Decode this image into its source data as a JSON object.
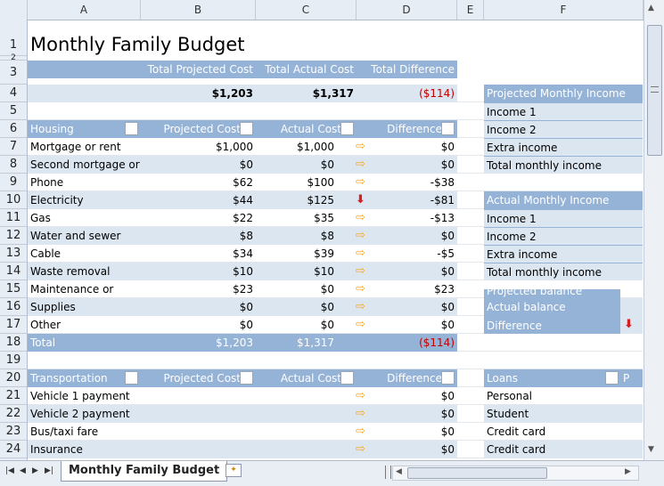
{
  "columns": [
    "A",
    "B",
    "C",
    "D",
    "E",
    "F"
  ],
  "rows": [
    "1",
    "2",
    "3",
    "4",
    "5",
    "6",
    "7",
    "8",
    "9",
    "10",
    "11",
    "12",
    "13",
    "14",
    "15",
    "16",
    "17",
    "18",
    "19",
    "20",
    "21",
    "22",
    "23",
    "24"
  ],
  "title": "Monthly Family Budget",
  "summary": {
    "headers": [
      "Total Projected Cost",
      "Total Actual Cost",
      "Total Difference"
    ],
    "values": [
      "$1,203",
      "$1,317",
      "($114)"
    ]
  },
  "housing": {
    "headers": [
      "Housing",
      "Projected Cost",
      "Actual Cost",
      "Difference"
    ],
    "rows": [
      {
        "label": "Mortgage or rent",
        "projected": "$1,000",
        "actual": "$1,000",
        "diff": "$0",
        "dir": "side"
      },
      {
        "label": "Second mortgage or",
        "projected": "$0",
        "actual": "$0",
        "diff": "$0",
        "dir": "side"
      },
      {
        "label": "Phone",
        "projected": "$62",
        "actual": "$100",
        "diff": "-$38",
        "dir": "side"
      },
      {
        "label": "Electricity",
        "projected": "$44",
        "actual": "$125",
        "diff": "-$81",
        "dir": "down"
      },
      {
        "label": "Gas",
        "projected": "$22",
        "actual": "$35",
        "diff": "-$13",
        "dir": "side"
      },
      {
        "label": "Water and sewer",
        "projected": "$8",
        "actual": "$8",
        "diff": "$0",
        "dir": "side"
      },
      {
        "label": "Cable",
        "projected": "$34",
        "actual": "$39",
        "diff": "-$5",
        "dir": "side"
      },
      {
        "label": "Waste removal",
        "projected": "$10",
        "actual": "$10",
        "diff": "$0",
        "dir": "side"
      },
      {
        "label": "Maintenance or",
        "projected": "$23",
        "actual": "$0",
        "diff": "$23",
        "dir": "side"
      },
      {
        "label": "Supplies",
        "projected": "$0",
        "actual": "$0",
        "diff": "$0",
        "dir": "side"
      },
      {
        "label": "Other",
        "projected": "$0",
        "actual": "$0",
        "diff": "$0",
        "dir": "side"
      }
    ],
    "total": {
      "label": "Total",
      "projected": "$1,203",
      "actual": "$1,317",
      "diff": "($114)"
    }
  },
  "transportation": {
    "headers": [
      "Transportation",
      "Projected Cost",
      "Actual Cost",
      "Difference"
    ],
    "rows": [
      {
        "label": "Vehicle 1 payment",
        "projected": "",
        "actual": "",
        "diff": "$0",
        "dir": "side"
      },
      {
        "label": "Vehicle 2 payment",
        "projected": "",
        "actual": "",
        "diff": "$0",
        "dir": "side"
      },
      {
        "label": "Bus/taxi fare",
        "projected": "",
        "actual": "",
        "diff": "$0",
        "dir": "side"
      },
      {
        "label": "Insurance",
        "projected": "",
        "actual": "",
        "diff": "$0",
        "dir": "side"
      }
    ]
  },
  "projected_income": {
    "header": "Projected Monthly Income",
    "items": [
      "Income 1",
      "Income 2",
      "Extra income",
      "Total monthly income"
    ]
  },
  "actual_income": {
    "header": "Actual Monthly Income",
    "items": [
      "Income 1",
      "Income 2",
      "Extra income",
      "Total monthly income"
    ]
  },
  "balance": {
    "partial": "Projected balance",
    "items": [
      "Actual balance",
      "Difference"
    ]
  },
  "loans": {
    "header": "Loans",
    "header_partial": "P",
    "items": [
      "Personal",
      "Student",
      "Credit card",
      "Credit card"
    ]
  },
  "sheet_tab": "Monthly Family Budget",
  "colors": {
    "header": "#95b3d7",
    "band": "#dce6f1",
    "negative": "#c00000",
    "arrow_side": "#f5a623",
    "arrow_down": "#d42020"
  }
}
